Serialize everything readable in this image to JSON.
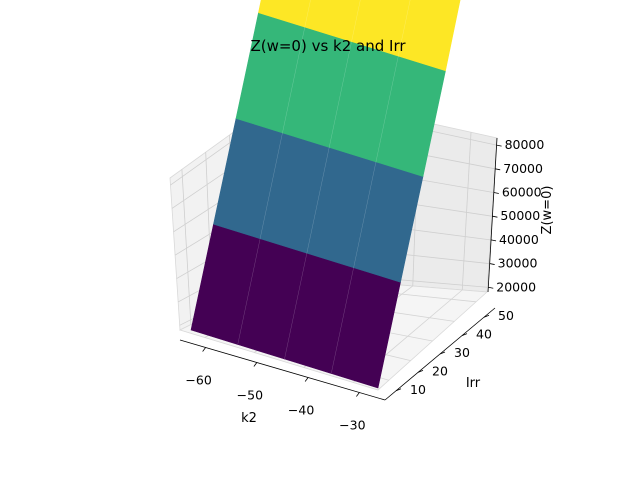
{
  "chart_data": {
    "type": "surface",
    "title": "Z(w=0) vs k2 and Irr",
    "xlabel": "k2",
    "ylabel": "Irr",
    "zlabel": "Z(w=0)",
    "x_ticks": [
      -60,
      -50,
      -40,
      -30
    ],
    "y_ticks": [
      10,
      20,
      30,
      40,
      50
    ],
    "z_ticks": [
      20000,
      30000,
      40000,
      50000,
      60000,
      70000,
      80000
    ],
    "x_tick_labels": [
      "−60",
      "−50",
      "−40",
      "−30"
    ],
    "y_tick_labels": [
      "10",
      "20",
      "30",
      "40",
      "50"
    ],
    "z_tick_labels": [
      "20000",
      "30000",
      "40000",
      "50000",
      "60000",
      "70000",
      "80000"
    ],
    "xlim": [
      -65,
      -25
    ],
    "ylim": [
      5,
      55
    ],
    "zlim": [
      18000,
      83000
    ],
    "grid": true,
    "colormap": "viridis",
    "surface": {
      "x": [
        -65,
        -55,
        -45,
        -35,
        -25
      ],
      "y": [
        5,
        17.5,
        30,
        42.5,
        55
      ],
      "z_rows": [
        [
          18000,
          18000,
          18000,
          18000,
          18000
        ],
        [
          34000,
          34000,
          34000,
          34000,
          34000
        ],
        [
          50000,
          50000,
          50000,
          50000,
          50000
        ],
        [
          66000,
          66000,
          66000,
          66000,
          66000
        ],
        [
          83000,
          83000,
          83000,
          83000,
          83000
        ]
      ],
      "band_colors": [
        "#440154",
        "#31688e",
        "#35b779",
        "#fde725"
      ]
    }
  }
}
